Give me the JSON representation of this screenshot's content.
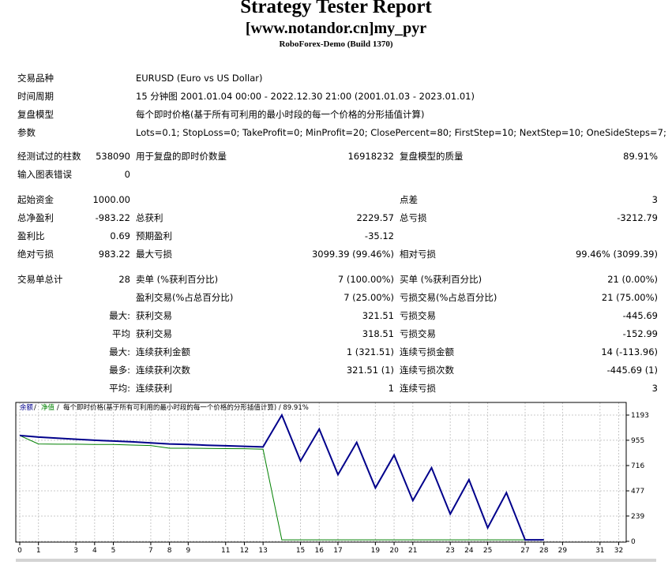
{
  "header": {
    "title": "Strategy Tester Report",
    "subtitle": "[www.notandor.cn]my_pyr",
    "server": "RoboForex-Demo (Build 1370)"
  },
  "info": {
    "symbol_label": "交易品种",
    "symbol_value": "EURUSD (Euro vs US Dollar)",
    "period_label": "时间周期",
    "period_value": "15 分钟图 2001.01.04 00:00 - 2022.12.30 21:00 (2001.01.03 - 2023.01.01)",
    "model_label": "复盘模型",
    "model_value": "每个即时价格(基于所有可利用的最小时段的每一个价格的分形插值计算)",
    "params_label": "参数",
    "params_value": "Lots=0.1; StopLoss=0; TakeProfit=0; MinProfit=20; ClosePercent=80; FirstStep=10; NextStep=10; OneSideSteps=7;"
  },
  "stats": {
    "bars_label": "经测试过的柱数",
    "bars_value": "538090",
    "ticks_label": "用于复盘的即时价数量",
    "ticks_value": "16918232",
    "quality_label": "复盘模型的质量",
    "quality_value": "89.91%",
    "errors_label": "输入图表错误",
    "errors_value": "0",
    "deposit_label": "起始资金",
    "deposit_value": "1000.00",
    "spread_label": "点差",
    "spread_value": "3",
    "netprofit_label": "总净盈利",
    "netprofit_value": "-983.22",
    "grossprofit_label": "总获利",
    "grossprofit_value": "2229.57",
    "grossloss_label": "总亏损",
    "grossloss_value": "-3212.79",
    "pf_label": "盈利比",
    "pf_value": "0.69",
    "payoff_label": "预期盈利",
    "payoff_value": "-35.12",
    "absdd_label": "绝对亏损",
    "absdd_value": "983.22",
    "maxdd_label": "最大亏损",
    "maxdd_value": "3099.39 (99.46%)",
    "reldd_label": "相对亏损",
    "reldd_value": "99.46% (3099.39)",
    "trades_label": "交易单总计",
    "trades_value": "28",
    "short_label": "卖单 (%获利百分比)",
    "short_value": "7 (100.00%)",
    "long_label": "买单 (%获利百分比)",
    "long_value": "21 (0.00%)",
    "proftrades_label": "盈利交易(%占总百分比)",
    "proftrades_value": "7 (25.00%)",
    "losstrades_label": "亏损交易(%占总百分比)",
    "losstrades_value": "21 (75.00%)",
    "max_label": "最大:",
    "avg_label": "平均",
    "max2_label": "最大:",
    "most_label": "最多:",
    "avg2_label": "平均:",
    "largest_profit_label": "获利交易",
    "largest_profit_value": "321.51",
    "largest_loss_label": "亏损交易",
    "largest_loss_value": "-445.69",
    "avg_profit_label": "获利交易",
    "avg_profit_value": "318.51",
    "avg_loss_label": "亏损交易",
    "avg_loss_value": "-152.99",
    "maxconsec_win_label": "连续获利金额",
    "maxconsec_win_value": "1 (321.51)",
    "maxconsec_loss_label": "连续亏损金额",
    "maxconsec_loss_value": "14 (-113.96)",
    "maxconsec_profit_label": "连续获利次数",
    "maxconsec_profit_value": "321.51 (1)",
    "maxconsec_lossamt_label": "连续亏损次数",
    "maxconsec_lossamt_value": "-445.69 (1)",
    "avgconsec_win_label": "连续获利",
    "avgconsec_win_value": "1",
    "avgconsec_loss_label": "连续亏损",
    "avgconsec_loss_value": "3"
  },
  "chart_data": {
    "type": "line",
    "legend": {
      "balance": "余额",
      "equity": "净值",
      "text": "每个即时价格(基于所有可利用的最小时段的每一个价格的分形插值计算) / 89.91%"
    },
    "x_ticks": [
      0,
      1,
      3,
      4,
      5,
      7,
      8,
      9,
      11,
      12,
      13,
      15,
      16,
      17,
      19,
      20,
      21,
      23,
      24,
      25,
      27,
      28,
      29,
      31,
      32
    ],
    "y_ticks": [
      1193,
      955,
      716,
      477,
      239,
      0
    ],
    "xlim": [
      0,
      32.4
    ],
    "ylim": [
      0,
      1193
    ],
    "colors": {
      "balance": "#00008b",
      "equity": "#008000"
    },
    "series": [
      {
        "name": "余额",
        "x": [
          0,
          1,
          2,
          3,
          4,
          5,
          6,
          7,
          8,
          9,
          10,
          11,
          12,
          13,
          14,
          15,
          16,
          17,
          18,
          19,
          20,
          21,
          22,
          23,
          24,
          25,
          26,
          27,
          28
        ],
        "y": [
          1000,
          985,
          975,
          965,
          955,
          948,
          940,
          930,
          920,
          915,
          908,
          903,
          898,
          892,
          1193,
          760,
          1060,
          630,
          935,
          505,
          815,
          385,
          695,
          258,
          582,
          128,
          459,
          14,
          14
        ]
      },
      {
        "name": "净值",
        "x": [
          0,
          1,
          2,
          3,
          4,
          5,
          6,
          7,
          8,
          9,
          10,
          11,
          12,
          13,
          14,
          15,
          16,
          17,
          18,
          19,
          20,
          21,
          22,
          23,
          24,
          25,
          26,
          27,
          28
        ],
        "y": [
          1000,
          920,
          918,
          918,
          915,
          915,
          910,
          905,
          880,
          880,
          878,
          876,
          875,
          870,
          14,
          14,
          14,
          14,
          14,
          14,
          14,
          14,
          14,
          14,
          14,
          14,
          14,
          14,
          14
        ]
      }
    ]
  }
}
